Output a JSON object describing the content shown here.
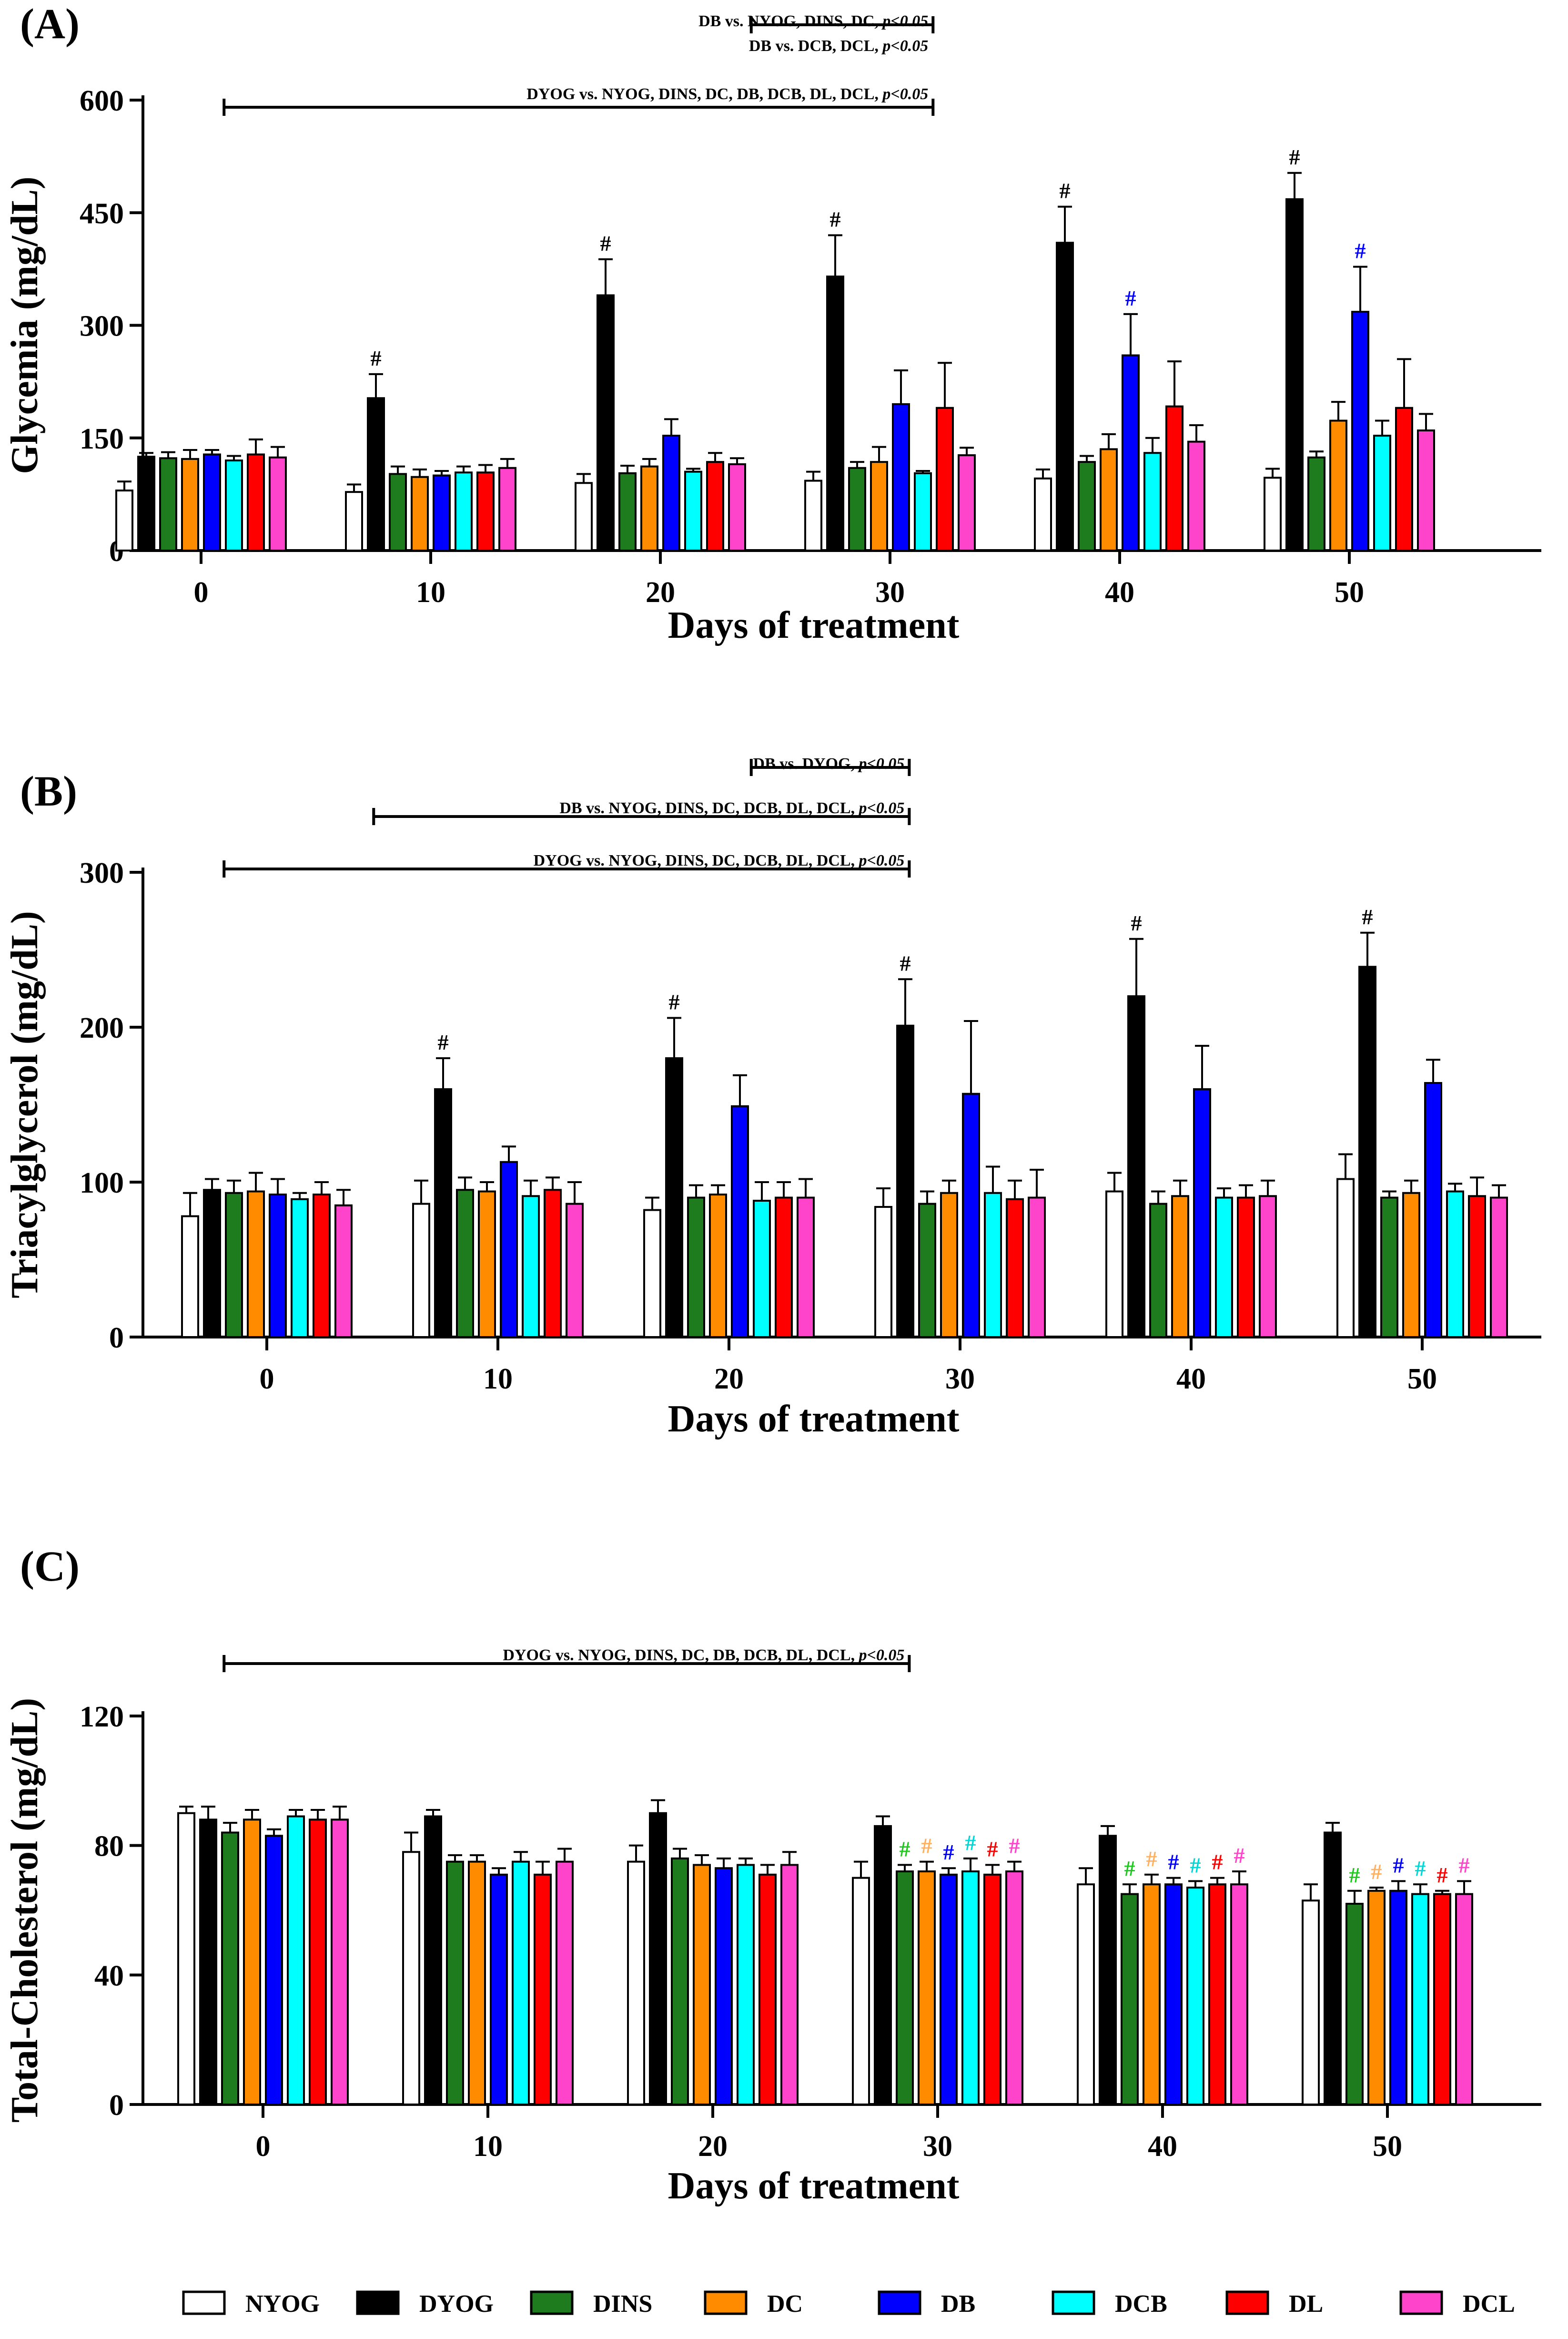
{
  "figure": {
    "series_names": [
      "NYOG",
      "DYOG",
      "DINS",
      "DC",
      "DB",
      "DCB",
      "DL",
      "DCL"
    ],
    "series_colors": [
      "#ffffff",
      "#000000",
      "#1e7b1e",
      "#ff8c00",
      "#0000ff",
      "#00ffff",
      "#ff0000",
      "#ff44cc"
    ],
    "sig_marker": "#"
  },
  "chart_data": [
    {
      "type": "bar",
      "panel_label": "(A)",
      "xlabel": "Days of treatment",
      "ylabel": "Glycemia (mg/dL)",
      "ylim": [
        0,
        600
      ],
      "yticks": [
        0,
        150,
        300,
        450,
        600
      ],
      "categories": [
        "0",
        "10",
        "20",
        "30",
        "40",
        "50"
      ],
      "series": [
        {
          "name": "NYOG",
          "values": [
            80,
            78,
            90,
            93,
            96,
            97
          ],
          "errors": [
            12,
            10,
            12,
            12,
            12,
            12
          ]
        },
        {
          "name": "DYOG",
          "values": [
            125,
            203,
            340,
            365,
            410,
            468
          ],
          "errors": [
            5,
            32,
            48,
            55,
            48,
            35
          ]
        },
        {
          "name": "DINS",
          "values": [
            123,
            102,
            103,
            110,
            118,
            124
          ],
          "errors": [
            8,
            10,
            10,
            8,
            8,
            8
          ]
        },
        {
          "name": "DC",
          "values": [
            122,
            98,
            112,
            118,
            135,
            173
          ],
          "errors": [
            12,
            10,
            10,
            20,
            20,
            25
          ]
        },
        {
          "name": "DB",
          "values": [
            128,
            100,
            153,
            195,
            260,
            318
          ],
          "errors": [
            6,
            6,
            22,
            45,
            55,
            60
          ]
        },
        {
          "name": "DCB",
          "values": [
            120,
            104,
            105,
            103,
            130,
            153
          ],
          "errors": [
            6,
            8,
            4,
            3,
            20,
            20
          ]
        },
        {
          "name": "DL",
          "values": [
            128,
            104,
            118,
            190,
            192,
            190
          ],
          "errors": [
            20,
            10,
            12,
            60,
            60,
            65
          ]
        },
        {
          "name": "DCL",
          "values": [
            124,
            110,
            115,
            127,
            145,
            160
          ],
          "errors": [
            14,
            12,
            8,
            10,
            22,
            22
          ]
        }
      ],
      "markers": [
        {
          "series": "DYOG",
          "category": "10",
          "label": "#",
          "color": "#000000"
        },
        {
          "series": "DYOG",
          "category": "20",
          "label": "#",
          "color": "#000000"
        },
        {
          "series": "DYOG",
          "category": "30",
          "label": "#",
          "color": "#000000"
        },
        {
          "series": "DYOG",
          "category": "40",
          "label": "#",
          "color": "#000000"
        },
        {
          "series": "DYOG",
          "category": "50",
          "label": "#",
          "color": "#000000"
        },
        {
          "series": "DB",
          "category": "40",
          "label": "#",
          "color": "#0000ff"
        },
        {
          "series": "DB",
          "category": "50",
          "label": "#",
          "color": "#0000ff"
        }
      ],
      "brackets": [
        {
          "text": "DB vs. NYOG, DINS, DC, ",
          "p": "p<0.05",
          "from": 43.5,
          "to": 56.5,
          "bar": true
        },
        {
          "text": "DB vs. DCB, DCL, ",
          "p": "p<0.05",
          "from": 43.5,
          "to": 56.5,
          "bar": false
        },
        {
          "text": "DYOG vs. NYOG, DINS, DC, DB, DCB, DL, DCL, ",
          "p": "p<0.05",
          "from": 5.8,
          "to": 56.5,
          "bar": true
        }
      ]
    },
    {
      "type": "bar",
      "panel_label": "(B)",
      "xlabel": "Days of treatment",
      "ylabel": "Triacylglycerol  (mg/dL)",
      "ylim": [
        0,
        300
      ],
      "yticks": [
        0,
        100,
        200,
        300
      ],
      "categories": [
        "0",
        "10",
        "20",
        "30",
        "40",
        "50"
      ],
      "series": [
        {
          "name": "NYOG",
          "values": [
            78,
            86,
            82,
            84,
            94,
            102
          ],
          "errors": [
            15,
            15,
            8,
            12,
            12,
            16
          ]
        },
        {
          "name": "DYOG",
          "values": [
            95,
            160,
            180,
            201,
            220,
            239
          ],
          "errors": [
            7,
            20,
            26,
            30,
            37,
            22
          ]
        },
        {
          "name": "DINS",
          "values": [
            93,
            95,
            90,
            86,
            86,
            90
          ],
          "errors": [
            8,
            8,
            8,
            8,
            8,
            4
          ]
        },
        {
          "name": "DC",
          "values": [
            94,
            94,
            92,
            93,
            91,
            93
          ],
          "errors": [
            12,
            6,
            6,
            8,
            10,
            8
          ]
        },
        {
          "name": "DB",
          "values": [
            92,
            113,
            149,
            157,
            160,
            164
          ],
          "errors": [
            10,
            10,
            20,
            47,
            28,
            15
          ]
        },
        {
          "name": "DCB",
          "values": [
            89,
            91,
            88,
            93,
            90,
            94
          ],
          "errors": [
            4,
            10,
            12,
            17,
            6,
            5
          ]
        },
        {
          "name": "DL",
          "values": [
            92,
            95,
            90,
            89,
            90,
            91
          ],
          "errors": [
            8,
            8,
            10,
            12,
            8,
            12
          ]
        },
        {
          "name": "DCL",
          "values": [
            85,
            86,
            90,
            90,
            91,
            90
          ],
          "errors": [
            10,
            14,
            12,
            18,
            10,
            8
          ]
        }
      ],
      "markers": [
        {
          "series": "DYOG",
          "category": "10",
          "label": "#",
          "color": "#000000"
        },
        {
          "series": "DYOG",
          "category": "20",
          "label": "#",
          "color": "#000000"
        },
        {
          "series": "DYOG",
          "category": "30",
          "label": "#",
          "color": "#000000"
        },
        {
          "series": "DYOG",
          "category": "40",
          "label": "#",
          "color": "#000000"
        },
        {
          "series": "DYOG",
          "category": "50",
          "label": "#",
          "color": "#000000"
        }
      ],
      "brackets": [
        {
          "text": "DB vs.  DYOG, ",
          "p": "p<0.05",
          "from": 43.5,
          "to": 54.8,
          "bar": true
        },
        {
          "text": "DB vs. NYOG, DINS, DC, DCB, DL, DCL,  ",
          "p": "p<0.05",
          "from": 16.5,
          "to": 54.8,
          "bar": true
        },
        {
          "text": "DYOG vs. NYOG, DINS, DC, DCB, DL, DCL,  ",
          "p": "p<0.05",
          "from": 5.8,
          "to": 54.8,
          "bar": true
        }
      ]
    },
    {
      "type": "bar",
      "panel_label": "(C)",
      "xlabel": "Days of treatment",
      "ylabel": "Total-Cholesterol (mg/dL)",
      "ylim": [
        0,
        120
      ],
      "yticks": [
        0,
        40,
        80,
        120
      ],
      "categories": [
        "0",
        "10",
        "20",
        "30",
        "40",
        "50"
      ],
      "series": [
        {
          "name": "NYOG",
          "values": [
            90,
            78,
            75,
            70,
            68,
            63
          ],
          "errors": [
            2,
            6,
            5,
            5,
            5,
            5
          ]
        },
        {
          "name": "DYOG",
          "values": [
            88,
            89,
            90,
            86,
            83,
            84
          ],
          "errors": [
            4,
            2,
            4,
            3,
            3,
            3
          ]
        },
        {
          "name": "DINS",
          "values": [
            84,
            75,
            76,
            72,
            65,
            62
          ],
          "errors": [
            3,
            2,
            3,
            2,
            3,
            4
          ]
        },
        {
          "name": "DC",
          "values": [
            88,
            75,
            74,
            72,
            68,
            66
          ],
          "errors": [
            3,
            2,
            3,
            3,
            3,
            1
          ]
        },
        {
          "name": "DB",
          "values": [
            83,
            71,
            73,
            71,
            68,
            66
          ],
          "errors": [
            2,
            2,
            3,
            2,
            2,
            3
          ]
        },
        {
          "name": "DCB",
          "values": [
            89,
            75,
            74,
            72,
            67,
            65
          ],
          "errors": [
            2,
            3,
            2,
            4,
            2,
            3
          ]
        },
        {
          "name": "DL",
          "values": [
            88,
            71,
            71,
            71,
            68,
            65
          ],
          "errors": [
            3,
            4,
            3,
            3,
            2,
            1
          ]
        },
        {
          "name": "DCL",
          "values": [
            88,
            75,
            74,
            72,
            68,
            65
          ],
          "errors": [
            4,
            4,
            4,
            3,
            4,
            4
          ]
        }
      ],
      "markers": [
        {
          "series": "DINS",
          "category": "30",
          "label": "#",
          "color": "#1ec81e"
        },
        {
          "series": "DC",
          "category": "30",
          "label": "#",
          "color": "#ffb060"
        },
        {
          "series": "DB",
          "category": "30",
          "label": "#",
          "color": "#0000ff"
        },
        {
          "series": "DCB",
          "category": "30",
          "label": "#",
          "color": "#00d8d8"
        },
        {
          "series": "DL",
          "category": "30",
          "label": "#",
          "color": "#ff0000"
        },
        {
          "series": "DCL",
          "category": "30",
          "label": "#",
          "color": "#ff44cc"
        },
        {
          "series": "DINS",
          "category": "40",
          "label": "#",
          "color": "#1ec81e"
        },
        {
          "series": "DC",
          "category": "40",
          "label": "#",
          "color": "#ffb060"
        },
        {
          "series": "DB",
          "category": "40",
          "label": "#",
          "color": "#0000ff"
        },
        {
          "series": "DCB",
          "category": "40",
          "label": "#",
          "color": "#00d8d8"
        },
        {
          "series": "DL",
          "category": "40",
          "label": "#",
          "color": "#ff0000"
        },
        {
          "series": "DCL",
          "category": "40",
          "label": "#",
          "color": "#ff44cc"
        },
        {
          "series": "DINS",
          "category": "50",
          "label": "#",
          "color": "#1ec81e"
        },
        {
          "series": "DC",
          "category": "50",
          "label": "#",
          "color": "#ffb060"
        },
        {
          "series": "DB",
          "category": "50",
          "label": "#",
          "color": "#0000ff"
        },
        {
          "series": "DCB",
          "category": "50",
          "label": "#",
          "color": "#00d8d8"
        },
        {
          "series": "DL",
          "category": "50",
          "label": "#",
          "color": "#ff0000"
        },
        {
          "series": "DCL",
          "category": "50",
          "label": "#",
          "color": "#ff44cc"
        }
      ],
      "brackets": [
        {
          "text": "DYOG vs.  NYOG, DINS, DC, DB, DCB, DL, DCL,  ",
          "p": "p<0.05",
          "from": 5.8,
          "to": 54.8,
          "bar": true
        }
      ]
    }
  ]
}
